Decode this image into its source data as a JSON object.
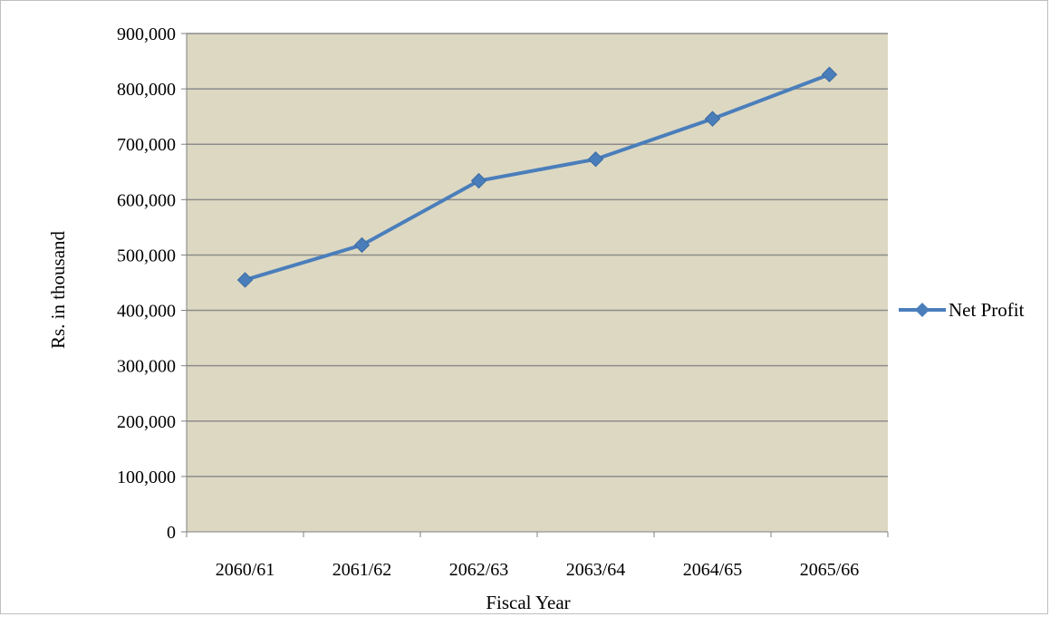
{
  "chart_data": {
    "type": "line",
    "title": "",
    "xlabel": "Fiscal Year",
    "ylabel": "Rs. in thousand",
    "categories": [
      "2060/61",
      "2061/62",
      "2062/63",
      "2063/64",
      "2064/65",
      "2065/66"
    ],
    "series": [
      {
        "name": "Net Profit",
        "values": [
          455000,
          518000,
          634000,
          673000,
          746000,
          826000
        ]
      }
    ],
    "ylim": [
      0,
      900000
    ],
    "yticks": [
      "0",
      "100,000",
      "200,000",
      "300,000",
      "400,000",
      "500,000",
      "600,000",
      "700,000",
      "800,000",
      "900,000"
    ],
    "grid": true,
    "legend": "right",
    "colors": {
      "plot_background": "#ddd8c2",
      "gridline": "#8c8c8c",
      "series": "#4a7ebb"
    }
  }
}
